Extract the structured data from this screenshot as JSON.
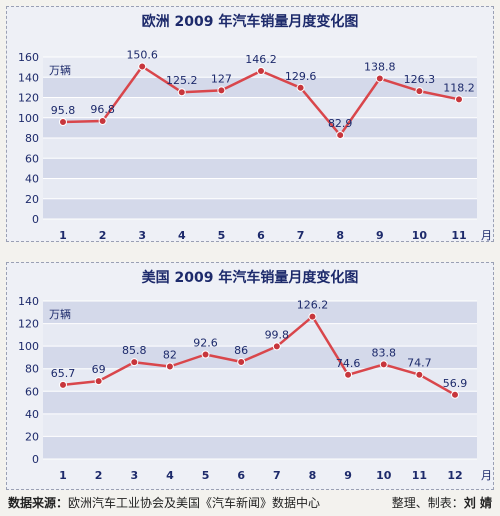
{
  "chart_data": [
    {
      "type": "line",
      "title": "欧洲 2009 年汽车销量月度变化图",
      "ylabel": "万辆",
      "xlabel": "月",
      "categories": [
        "1",
        "2",
        "3",
        "4",
        "5",
        "6",
        "7",
        "8",
        "9",
        "10",
        "11"
      ],
      "values": [
        95.8,
        96.8,
        150.6,
        125.2,
        127,
        146.2,
        129.6,
        82.9,
        138.8,
        126.3,
        118.2
      ],
      "value_labels": [
        "95.8",
        "96.8",
        "150.6",
        "125.2",
        "127",
        "146.2",
        "129.6",
        "82.9",
        "138.8",
        "126.3",
        "118.2"
      ],
      "yticks": [
        0,
        20,
        40,
        60,
        80,
        100,
        120,
        140,
        160
      ],
      "ylim": [
        0,
        160
      ],
      "grid": "horizontal bands",
      "colors": {
        "line": "#d9464b",
        "marker": "#c7363c",
        "band": "#d4d9ea"
      }
    },
    {
      "type": "line",
      "title": "美国 2009 年汽车销量月度变化图",
      "ylabel": "万辆",
      "xlabel": "月",
      "categories": [
        "1",
        "2",
        "3",
        "4",
        "5",
        "6",
        "7",
        "8",
        "9",
        "10",
        "11",
        "12"
      ],
      "values": [
        65.7,
        69,
        85.8,
        82,
        92.6,
        86,
        99.8,
        126.2,
        74.6,
        83.8,
        74.7,
        56.9
      ],
      "value_labels": [
        "65.7",
        "69",
        "85.8",
        "82",
        "92.6",
        "86",
        "99.8",
        "126.2",
        "74.6",
        "83.8",
        "74.7",
        "56.9"
      ],
      "yticks": [
        0,
        20,
        40,
        60,
        80,
        100,
        120,
        140
      ],
      "ylim": [
        0,
        140
      ],
      "grid": "horizontal bands",
      "colors": {
        "line": "#d9464b",
        "marker": "#c7363c",
        "band": "#d4d9ea"
      }
    }
  ],
  "footer": {
    "source_label": "数据来源：",
    "source_text": "欧洲汽车工业协会及美国《汽车新闻》数据中心",
    "credit_label": "整理、制表：",
    "credit_name": "刘 婧"
  }
}
